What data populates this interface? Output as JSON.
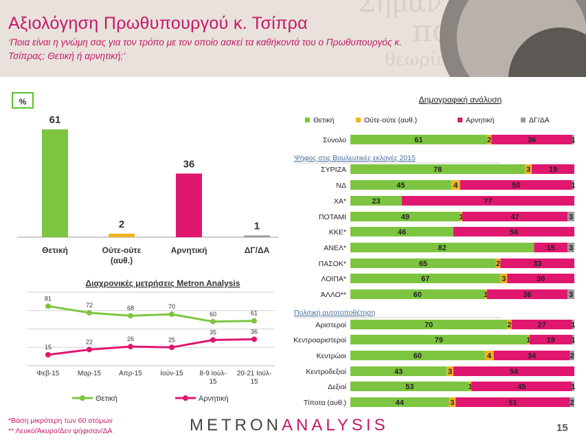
{
  "title": "Αξιολόγηση Πρωθυπουργού κ. Τσίπρα",
  "subtitle": "‘Ποια είναι η γνώμη σας για τον τρόπο με τον οποίο ασκεί τα καθήκοντά του ο Πρωθυπουργός κ. Τσίπρας; Θετική ή αρνητική;’",
  "unit_label": "%",
  "footnotes": [
    "*Βάση μικρότερη των 60 ατόμων",
    "** Λευκό/Άκυρο/Δεν ψήφισαν/ΔΑ"
  ],
  "logo": {
    "part1": "METRON",
    "part2": "ANALYSIS"
  },
  "page_number": "15",
  "colors": {
    "positive": "#7dc540",
    "neutral": "#f0b323",
    "negative": "#e0176f",
    "dk": "#9a9a9a",
    "title": "#c51866"
  },
  "chart_data": [
    {
      "type": "bar",
      "categories": [
        "Θετική",
        "Ούτε-ούτε (αυθ.)",
        "Αρνητική",
        "ΔΓ/ΔΑ"
      ],
      "values": [
        61,
        2,
        36,
        1
      ],
      "colors": [
        "#7dc540",
        "#f0b323",
        "#e0176f",
        "#9a9a9a"
      ],
      "ylim": [
        0,
        70
      ]
    },
    {
      "type": "line",
      "title": "Διαχρονικές μετρήσεις Metron Analysis",
      "x": [
        "Φεβ-15",
        "Μαρ-15",
        "Απρ-15",
        "Ιούν-15",
        "8-9 Ιούλ-15",
        "20-21 Ιούλ-15"
      ],
      "series": [
        {
          "name": "Θετική",
          "values": [
            81,
            72,
            68,
            70,
            60,
            61
          ],
          "color": "#7dc540"
        },
        {
          "name": "Αρνητική",
          "values": [
            15,
            22,
            26,
            25,
            35,
            36
          ],
          "color": "#e0176f"
        }
      ],
      "ylim": [
        0,
        100
      ],
      "grid": true,
      "legend": "bottom"
    },
    {
      "type": "bar",
      "orientation": "horizontal",
      "stacked": true,
      "title": "Δημογραφική ανάλυση",
      "legend_entries": [
        "Θετική",
        "Ούτε-ούτε (αυθ.)",
        "Αρνητική",
        "ΔΓ/ΔΑ"
      ],
      "legend": "top",
      "groups": [
        {
          "header": "",
          "rows": [
            {
              "label": "Σύνολο",
              "values": [
                61,
                2,
                36,
                1
              ]
            }
          ]
        },
        {
          "header": "Ψήφος στις Βουλευτικές εκλογές 2015",
          "rows": [
            {
              "label": "ΣΥΡΙΖΑ",
              "values": [
                78,
                3,
                19,
                0
              ]
            },
            {
              "label": "ΝΔ",
              "values": [
                45,
                4,
                50,
                1
              ]
            },
            {
              "label": "ΧΑ*",
              "values": [
                23,
                0,
                77,
                0
              ]
            },
            {
              "label": "ΠΟΤΑΜΙ",
              "values": [
                49,
                1,
                47,
                3
              ]
            },
            {
              "label": "ΚΚΕ*",
              "values": [
                46,
                0,
                54,
                0
              ]
            },
            {
              "label": "ΑΝΕΛ*",
              "values": [
                82,
                0,
                15,
                3
              ]
            },
            {
              "label": "ΠΑΣΟΚ*",
              "values": [
                65,
                2,
                33,
                0
              ]
            },
            {
              "label": "ΛΟΙΠΑ*",
              "values": [
                67,
                3,
                30,
                0
              ]
            },
            {
              "label": "ΆΛΛΟ**",
              "values": [
                60,
                1,
                36,
                3
              ]
            }
          ]
        },
        {
          "header": "Πολιτική αυτοτοποθέτηση",
          "rows": [
            {
              "label": "Αριστεροί",
              "values": [
                70,
                2,
                27,
                1
              ]
            },
            {
              "label": "Κεντροαριστεροί",
              "values": [
                79,
                1,
                19,
                1
              ]
            },
            {
              "label": "Κεντρώοι",
              "values": [
                60,
                4,
                34,
                2
              ]
            },
            {
              "label": "Κεντροδεξιοί",
              "values": [
                43,
                3,
                54,
                0
              ]
            },
            {
              "label": "Δεξιοί",
              "values": [
                53,
                1,
                45,
                1
              ]
            },
            {
              "label": "Τίποτα (αυθ.)",
              "values": [
                44,
                3,
                51,
                2
              ]
            }
          ]
        }
      ]
    }
  ]
}
